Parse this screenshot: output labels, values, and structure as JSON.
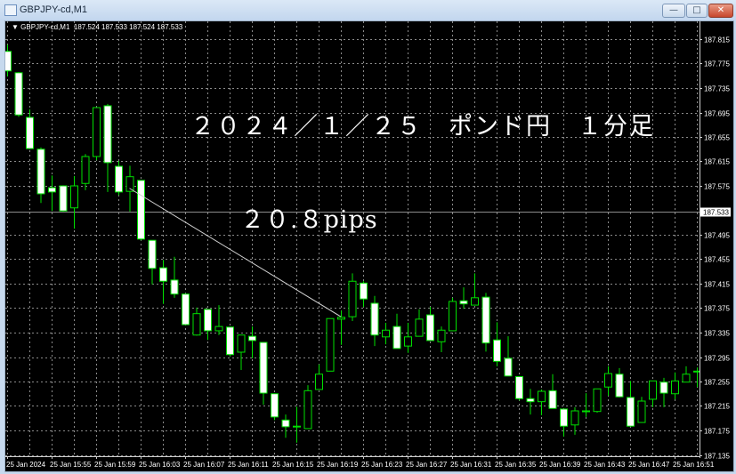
{
  "window": {
    "title": "GBPJPY-cd,M1",
    "buttons": {
      "minimize": "—",
      "maximize": "□",
      "close": "✕"
    }
  },
  "chart_header": {
    "symbol": "GBPJPY-cd,M1",
    "ohlc_text": "187.524 187.533 187.524 187.533"
  },
  "annotations": {
    "title": "２０２４／１／２５　ポンド円　１分足",
    "pips": "２０.８pips"
  },
  "colors": {
    "background": "#000000",
    "candle_outline": "#00e000",
    "bear_fill": "#ffffff",
    "bull_fill": "#000000",
    "grid": "#8a8a8a",
    "bid_line": "#8c8c8c",
    "trendline": "#d0d0d0"
  },
  "chart_data": {
    "type": "candlestick",
    "timeframe": "M1",
    "first_time": "25 Jan 15:51",
    "ylim": [
      187.115,
      187.845
    ],
    "grid": true,
    "y_ticks": [
      "187.815",
      "187.775",
      "187.735",
      "187.695",
      "187.655",
      "187.615",
      "187.575",
      "187.495",
      "187.455",
      "187.415",
      "187.375",
      "187.335",
      "187.295",
      "187.255",
      "187.215",
      "187.175",
      "187.135"
    ],
    "x_tick_labels": [
      "25 Jan 2024",
      "25 Jan 15:55",
      "25 Jan 15:59",
      "25 Jan 16:03",
      "25 Jan 16:07",
      "25 Jan 16:11",
      "25 Jan 16:15",
      "25 Jan 16:19",
      "25 Jan 16:23",
      "25 Jan 16:27",
      "25 Jan 16:31",
      "25 Jan 16:35",
      "25 Jan 16:39",
      "25 Jan 16:43",
      "25 Jan 16:47",
      "25 Jan 16:51"
    ],
    "bid_price": "187.533",
    "trendline": {
      "from": {
        "time": "16:02",
        "price": 187.571
      },
      "to": {
        "time": "16:21",
        "price": 187.361
      }
    },
    "ohlc": [
      [
        187.795,
        187.806,
        187.754,
        187.763
      ],
      [
        187.76,
        187.761,
        187.688,
        187.691
      ],
      [
        187.687,
        187.7,
        187.635,
        187.636
      ],
      [
        187.635,
        187.638,
        187.547,
        187.562
      ],
      [
        187.572,
        187.592,
        187.534,
        187.565
      ],
      [
        187.575,
        187.576,
        187.533,
        187.534
      ],
      [
        187.539,
        187.591,
        187.505,
        187.575
      ],
      [
        187.579,
        187.627,
        187.568,
        187.623
      ],
      [
        187.623,
        187.703,
        187.617,
        187.703
      ],
      [
        187.706,
        187.709,
        187.565,
        187.613
      ],
      [
        187.607,
        187.616,
        187.56,
        187.565
      ],
      [
        187.566,
        187.608,
        187.533,
        187.59
      ],
      [
        187.584,
        187.584,
        187.486,
        187.488
      ],
      [
        187.486,
        187.486,
        187.414,
        187.44
      ],
      [
        187.441,
        187.454,
        187.382,
        187.419
      ],
      [
        187.421,
        187.459,
        187.392,
        187.398
      ],
      [
        187.398,
        187.398,
        187.347,
        187.348
      ],
      [
        187.331,
        187.376,
        187.33,
        187.366
      ],
      [
        187.373,
        187.373,
        187.323,
        187.338
      ],
      [
        187.338,
        187.38,
        187.331,
        187.345
      ],
      [
        187.344,
        187.344,
        187.296,
        187.299
      ],
      [
        187.303,
        187.331,
        187.274,
        187.331
      ],
      [
        187.329,
        187.345,
        187.293,
        187.322
      ],
      [
        187.319,
        187.319,
        187.217,
        187.236
      ],
      [
        187.235,
        187.235,
        187.192,
        187.197
      ],
      [
        187.192,
        187.201,
        187.163,
        187.181
      ],
      [
        187.181,
        187.214,
        187.155,
        187.182
      ],
      [
        187.178,
        187.249,
        187.178,
        187.24
      ],
      [
        187.242,
        187.283,
        187.242,
        187.267
      ],
      [
        187.272,
        187.358,
        187.272,
        187.358
      ],
      [
        187.357,
        187.371,
        187.315,
        187.36
      ],
      [
        187.361,
        187.432,
        187.354,
        187.419
      ],
      [
        187.416,
        187.419,
        187.377,
        187.39
      ],
      [
        187.383,
        187.395,
        187.313,
        187.331
      ],
      [
        187.328,
        187.351,
        187.316,
        187.339
      ],
      [
        187.345,
        187.366,
        187.309,
        187.309
      ],
      [
        187.313,
        187.351,
        187.302,
        187.328
      ],
      [
        187.329,
        187.373,
        187.329,
        187.357
      ],
      [
        187.364,
        187.377,
        187.322,
        187.322
      ],
      [
        187.32,
        187.345,
        187.303,
        187.339
      ],
      [
        187.338,
        187.392,
        187.338,
        187.386
      ],
      [
        187.387,
        187.409,
        187.374,
        187.382
      ],
      [
        187.38,
        187.432,
        187.38,
        187.392
      ],
      [
        187.393,
        187.4,
        187.304,
        187.318
      ],
      [
        187.323,
        187.352,
        187.28,
        187.288
      ],
      [
        187.293,
        187.329,
        187.264,
        187.264
      ],
      [
        187.263,
        187.263,
        187.224,
        187.227
      ],
      [
        187.227,
        187.243,
        187.201,
        187.222
      ],
      [
        187.222,
        187.242,
        187.2,
        187.239
      ],
      [
        187.24,
        187.267,
        187.211,
        187.211
      ],
      [
        187.21,
        187.21,
        187.165,
        187.182
      ],
      [
        187.184,
        187.213,
        187.168,
        187.207
      ],
      [
        187.206,
        187.236,
        187.197,
        187.207
      ],
      [
        187.206,
        187.243,
        187.204,
        187.243
      ],
      [
        187.246,
        187.28,
        187.232,
        187.268
      ],
      [
        187.267,
        187.277,
        187.229,
        187.23
      ],
      [
        187.229,
        187.256,
        187.182,
        187.182
      ],
      [
        187.188,
        187.23,
        187.188,
        187.223
      ],
      [
        187.226,
        187.256,
        187.213,
        187.256
      ],
      [
        187.254,
        187.261,
        187.213,
        187.236
      ],
      [
        187.235,
        187.27,
        187.226,
        187.256
      ],
      [
        187.254,
        187.28,
        187.254,
        187.267
      ],
      [
        187.271,
        187.278,
        187.246,
        187.272
      ]
    ]
  }
}
